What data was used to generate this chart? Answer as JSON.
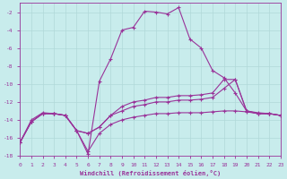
{
  "xlabel": "Windchill (Refroidissement éolien,°C)",
  "xlim": [
    0,
    23
  ],
  "ylim": [
    -18,
    -1
  ],
  "yticks": [
    -18,
    -16,
    -14,
    -12,
    -10,
    -8,
    -6,
    -4,
    -2
  ],
  "xticks": [
    0,
    1,
    2,
    3,
    4,
    5,
    6,
    7,
    8,
    9,
    10,
    11,
    12,
    13,
    14,
    15,
    16,
    17,
    18,
    19,
    20,
    21,
    22,
    23
  ],
  "bg_color": "#c8ecec",
  "grid_color": "#b0d8d8",
  "line_color": "#993399",
  "lines": [
    {
      "x": [
        0,
        1,
        2,
        3,
        4,
        5,
        6,
        7,
        8,
        9,
        10,
        11,
        12,
        13,
        14,
        15,
        16,
        17,
        18,
        19,
        20,
        21,
        22,
        23
      ],
      "y": [
        -16.5,
        -14.0,
        -13.2,
        -13.3,
        -13.5,
        -15.2,
        -17.8,
        -9.7,
        -7.2,
        -4.0,
        -3.7,
        -1.9,
        -2.0,
        -2.2,
        -1.5,
        -5.0,
        -6.0,
        -8.5,
        -9.3,
        -11.0,
        -13.0,
        -13.2,
        -13.3,
        -13.5
      ]
    },
    {
      "x": [
        0,
        1,
        2,
        3,
        4,
        5,
        6,
        7,
        8,
        9,
        10,
        11,
        12,
        13,
        14,
        15,
        16,
        17,
        18,
        19,
        20,
        21,
        22,
        23
      ],
      "y": [
        -16.5,
        -14.2,
        -13.3,
        -13.3,
        -13.5,
        -15.2,
        -15.5,
        -14.8,
        -13.5,
        -12.5,
        -12.0,
        -11.8,
        -11.5,
        -11.5,
        -11.3,
        -11.3,
        -11.2,
        -11.0,
        -9.5,
        -9.5,
        -13.0,
        -13.3,
        -13.3,
        -13.5
      ]
    },
    {
      "x": [
        0,
        1,
        2,
        3,
        4,
        5,
        6,
        7,
        8,
        9,
        10,
        11,
        12,
        13,
        14,
        15,
        16,
        17,
        18,
        19,
        20,
        21,
        22,
        23
      ],
      "y": [
        -16.5,
        -14.2,
        -13.3,
        -13.3,
        -13.5,
        -15.2,
        -15.5,
        -14.8,
        -13.5,
        -13.0,
        -12.5,
        -12.3,
        -12.0,
        -12.0,
        -11.8,
        -11.8,
        -11.7,
        -11.5,
        -10.5,
        -9.5,
        -13.0,
        -13.3,
        -13.3,
        -13.5
      ]
    },
    {
      "x": [
        0,
        1,
        2,
        3,
        4,
        5,
        6,
        7,
        8,
        9,
        10,
        11,
        12,
        13,
        14,
        15,
        16,
        17,
        18,
        19,
        20,
        21,
        22,
        23
      ],
      "y": [
        -16.5,
        -14.2,
        -13.3,
        -13.3,
        -13.5,
        -15.2,
        -17.5,
        -15.5,
        -14.5,
        -14.0,
        -13.7,
        -13.5,
        -13.3,
        -13.3,
        -13.2,
        -13.2,
        -13.2,
        -13.1,
        -13.0,
        -13.0,
        -13.1,
        -13.3,
        -13.3,
        -13.5
      ]
    }
  ]
}
